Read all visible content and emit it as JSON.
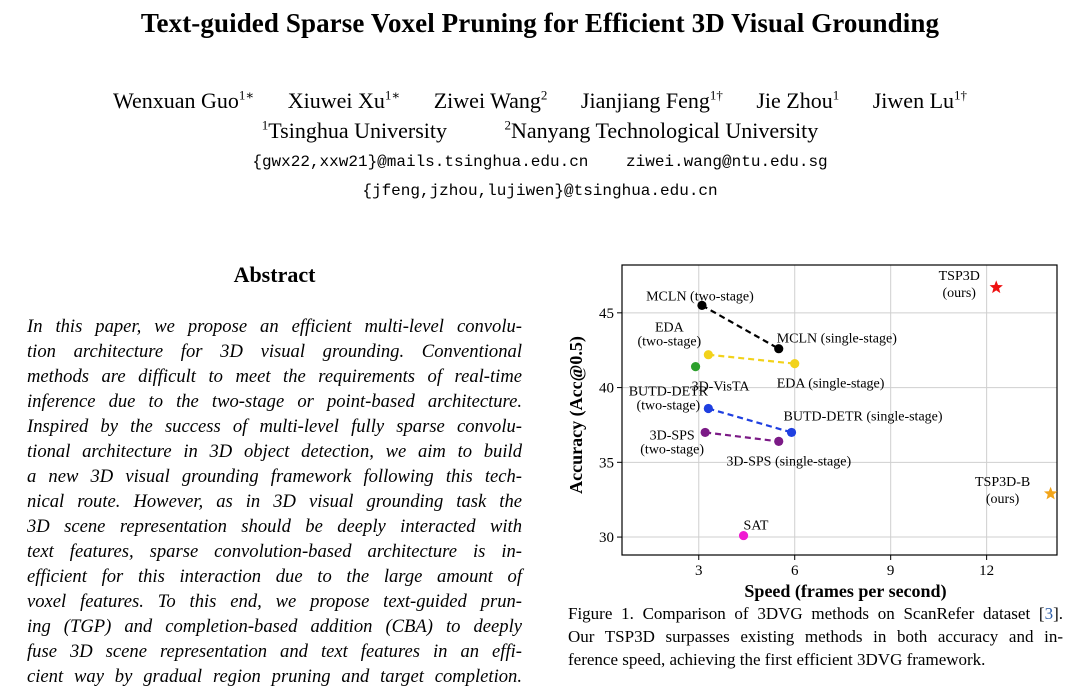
{
  "paper": {
    "title": "Text-guided Sparse Voxel Pruning for Efficient 3D Visual Grounding",
    "authors": [
      {
        "name": "Wenxuan Guo",
        "sup": "1∗"
      },
      {
        "name": "Xiuwei Xu",
        "sup": "1∗"
      },
      {
        "name": "Ziwei Wang",
        "sup": "2"
      },
      {
        "name": "Jianjiang Feng",
        "sup": "1†"
      },
      {
        "name": "Jie Zhou",
        "sup": "1"
      },
      {
        "name": "Jiwen Lu",
        "sup": "1†"
      }
    ],
    "affiliations": [
      {
        "sup": "1",
        "name": "Tsinghua University"
      },
      {
        "sup": "2",
        "name": "Nanyang Technological University"
      }
    ],
    "emails_line1": [
      "{gwx22,xxw21}@mails.tsinghua.edu.cn",
      "ziwei.wang@ntu.edu.sg"
    ],
    "emails_line2": [
      "{jfeng,jzhou,lujiwen}@tsinghua.edu.cn"
    ]
  },
  "abstract": {
    "heading": "Abstract",
    "lines": [
      "In this paper, we propose an efficient multi-level convolu-",
      "tion architecture for 3D visual grounding. Conventional",
      "methods are difficult to meet the requirements of real-time",
      "inference due to the two-stage or point-based architecture.",
      "Inspired by the success of multi-level fully sparse convolu-",
      "tional architecture in 3D object detection, we aim to build",
      "a new 3D visual grounding framework following this tech-",
      "nical route. However, as in 3D visual grounding task the",
      "3D scene representation should be deeply interacted with",
      "text features, sparse convolution-based architecture is in-",
      "efficient for this interaction due to the large amount of",
      "voxel features. To this end, we propose text-guided prun-",
      "ing (TGP) and completion-based addition (CBA) to deeply",
      "fuse 3D scene representation and text features in an effi-",
      "cient way by gradual region pruning and target completion."
    ]
  },
  "figure": {
    "caption_lines": [
      {
        "text": "Figure 1. Comparison of 3DVG methods on ScanRefer dataset [",
        "cite": "3",
        "after": "]."
      },
      {
        "text": "Our TSP3D surpasses existing methods in both accuracy and in-"
      },
      {
        "text": "ference speed, achieving the first efficient 3DVG framework."
      }
    ]
  },
  "chart_data": {
    "type": "scatter",
    "title": "",
    "xlabel": "Speed (frames per second)",
    "ylabel": "Accuracy (Acc@0.5)",
    "xlim": [
      0.6,
      14.2
    ],
    "ylim": [
      28.8,
      48.2
    ],
    "xticks": [
      3,
      6,
      9,
      12
    ],
    "yticks": [
      30,
      35,
      40,
      45
    ],
    "grid": true,
    "points": [
      {
        "id": "mcln-two",
        "label": "MCLN (two-stage)",
        "x": 3.1,
        "y": 45.5,
        "color": "#000000",
        "marker": "circle"
      },
      {
        "id": "mcln-single",
        "label": "MCLN (single-stage)",
        "x": 5.5,
        "y": 42.6,
        "color": "#000000",
        "marker": "circle"
      },
      {
        "id": "eda-two",
        "label": "EDA (two-stage)",
        "x": 3.3,
        "y": 42.2,
        "color": "#f2d21b",
        "marker": "circle"
      },
      {
        "id": "eda-single",
        "label": "EDA (single-stage)",
        "x": 6.0,
        "y": 41.6,
        "color": "#f2d21b",
        "marker": "circle"
      },
      {
        "id": "3dvista",
        "label": "3D-VisTA",
        "x": 2.9,
        "y": 41.4,
        "color": "#2ca02c",
        "marker": "circle"
      },
      {
        "id": "butd-two",
        "label": "BUTD-DETR (two-stage)",
        "x": 3.3,
        "y": 38.6,
        "color": "#1f3fe0",
        "marker": "circle"
      },
      {
        "id": "butd-single",
        "label": "BUTD-DETR (single-stage)",
        "x": 5.9,
        "y": 37.0,
        "color": "#1f3fe0",
        "marker": "circle"
      },
      {
        "id": "3dsps-two",
        "label": "3D-SPS (two-stage)",
        "x": 3.2,
        "y": 37.0,
        "color": "#7b1a86",
        "marker": "circle"
      },
      {
        "id": "3dsps-single",
        "label": "3D-SPS (single-stage)",
        "x": 5.5,
        "y": 36.4,
        "color": "#7b1a86",
        "marker": "circle"
      },
      {
        "id": "sat",
        "label": "SAT",
        "x": 4.4,
        "y": 30.1,
        "color": "#f01ad2",
        "marker": "circle"
      },
      {
        "id": "tsp3d",
        "label": "TSP3D (ours)",
        "x": 12.3,
        "y": 46.7,
        "color": "#ee1111",
        "marker": "star"
      },
      {
        "id": "tsp3d-b",
        "label": "TSP3D-B (ours)",
        "x": 14.0,
        "y": 32.9,
        "color": "#f2a51b",
        "marker": "star"
      }
    ],
    "connections": [
      {
        "from": "mcln-two",
        "to": "mcln-single",
        "color": "#000000"
      },
      {
        "from": "eda-two",
        "to": "eda-single",
        "color": "#f2d21b"
      },
      {
        "from": "butd-two",
        "to": "butd-single",
        "color": "#1f3fe0"
      },
      {
        "from": "3dsps-two",
        "to": "3dsps-single",
        "color": "#7b1a86"
      }
    ],
    "annotations": [
      {
        "for": "mcln-two",
        "lines": [
          "MCLN (two-stage)"
        ]
      },
      {
        "for": "mcln-single",
        "lines": [
          "MCLN (single-stage)"
        ]
      },
      {
        "for": "eda-two",
        "lines": [
          "EDA",
          "(two-stage)"
        ]
      },
      {
        "for": "eda-single",
        "lines": [
          "EDA (single-stage)"
        ]
      },
      {
        "for": "3dvista",
        "lines": [
          "3D-VisTA"
        ]
      },
      {
        "for": "butd-two",
        "lines": [
          "BUTD-DETR",
          "(two-stage)"
        ]
      },
      {
        "for": "butd-single",
        "lines": [
          "BUTD-DETR (single-stage)"
        ]
      },
      {
        "for": "3dsps-two",
        "lines": [
          "3D-SPS",
          "(two-stage)"
        ]
      },
      {
        "for": "3dsps-single",
        "lines": [
          "3D-SPS (single-stage)"
        ]
      },
      {
        "for": "sat",
        "lines": [
          "SAT"
        ]
      },
      {
        "for": "tsp3d",
        "lines": [
          "TSP3D",
          "(ours)"
        ]
      },
      {
        "for": "tsp3d-b",
        "lines": [
          "TSP3D-B",
          "(ours)"
        ]
      }
    ]
  }
}
